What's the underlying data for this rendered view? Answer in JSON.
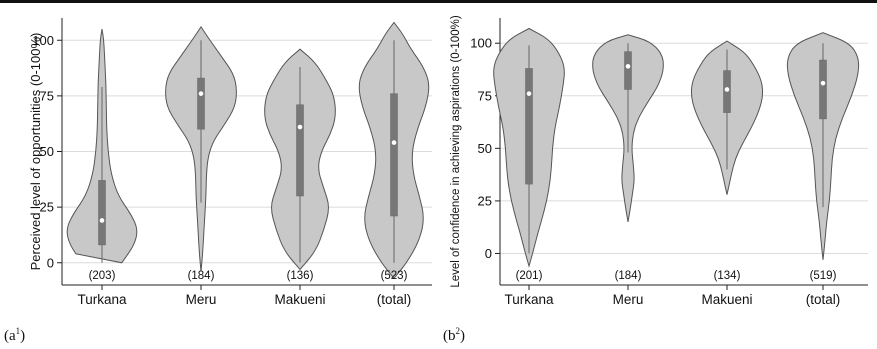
{
  "chart_data": [
    {
      "type": "violin",
      "panel_label": "(a",
      "panel_label_sup": "1",
      "ylabel": "Perceived level of opportunities (0-100%)",
      "ylim": [
        -10,
        110
      ],
      "yticks": [
        0,
        25,
        50,
        75,
        100
      ],
      "grid": true,
      "categories": [
        "Turkana",
        "Meru",
        "Makueni",
        "(total)"
      ],
      "counts": [
        "(203)",
        "(184)",
        "(136)",
        "(523)"
      ],
      "series": [
        {
          "category": "Turkana",
          "median": 19,
          "q1": 8,
          "q3": 37,
          "whisker_low": 0,
          "whisker_high": 79,
          "min": 0,
          "max": 105,
          "density": [
            [
              0,
              0.55
            ],
            [
              8,
              0.9
            ],
            [
              15,
              1.0
            ],
            [
              22,
              0.8
            ],
            [
              30,
              0.45
            ],
            [
              40,
              0.25
            ],
            [
              50,
              0.17
            ],
            [
              60,
              0.13
            ],
            [
              70,
              0.12
            ],
            [
              80,
              0.11
            ],
            [
              90,
              0.08
            ],
            [
              100,
              0.05
            ],
            [
              105,
              0
            ]
          ]
        },
        {
          "category": "Meru",
          "median": 76,
          "q1": 60,
          "q3": 83,
          "whisker_low": 27,
          "whisker_high": 100,
          "min": -4,
          "max": 106,
          "density": [
            [
              -4,
              0
            ],
            [
              5,
              0.05
            ],
            [
              20,
              0.1
            ],
            [
              30,
              0.14
            ],
            [
              40,
              0.15
            ],
            [
              48,
              0.2
            ],
            [
              55,
              0.35
            ],
            [
              62,
              0.65
            ],
            [
              70,
              0.95
            ],
            [
              78,
              1.0
            ],
            [
              85,
              0.9
            ],
            [
              92,
              0.6
            ],
            [
              100,
              0.25
            ],
            [
              106,
              0
            ]
          ]
        },
        {
          "category": "Makueni",
          "median": 61,
          "q1": 30,
          "q3": 71,
          "whisker_low": 0,
          "whisker_high": 88,
          "min": -3,
          "max": 96,
          "density": [
            [
              -3,
              0
            ],
            [
              5,
              0.35
            ],
            [
              15,
              0.55
            ],
            [
              25,
              0.68
            ],
            [
              33,
              0.55
            ],
            [
              42,
              0.4
            ],
            [
              50,
              0.48
            ],
            [
              58,
              0.7
            ],
            [
              66,
              0.82
            ],
            [
              75,
              0.78
            ],
            [
              82,
              0.6
            ],
            [
              90,
              0.35
            ],
            [
              96,
              0
            ]
          ]
        },
        {
          "category": "(total)",
          "median": 54,
          "q1": 21,
          "q3": 76,
          "whisker_low": 0,
          "whisker_high": 100,
          "min": -7,
          "max": 108,
          "density": [
            [
              -7,
              0
            ],
            [
              0,
              0.3
            ],
            [
              10,
              0.6
            ],
            [
              20,
              0.72
            ],
            [
              30,
              0.6
            ],
            [
              40,
              0.45
            ],
            [
              50,
              0.42
            ],
            [
              60,
              0.55
            ],
            [
              70,
              0.75
            ],
            [
              80,
              0.85
            ],
            [
              88,
              0.7
            ],
            [
              96,
              0.4
            ],
            [
              103,
              0.2
            ],
            [
              108,
              0
            ]
          ]
        }
      ]
    },
    {
      "type": "violin",
      "panel_label": "(b",
      "panel_label_sup": "2",
      "ylabel": "Level of confidence in achieving aspirations (0-100%)",
      "ylim": [
        -15,
        112
      ],
      "yticks": [
        0,
        25,
        50,
        75,
        100
      ],
      "grid": true,
      "categories": [
        "Turkana",
        "Meru",
        "Makueni",
        "(total)"
      ],
      "counts": [
        "(201)",
        "(184)",
        "(134)",
        "(519)"
      ],
      "series": [
        {
          "category": "Turkana",
          "median": 76,
          "q1": 33,
          "q3": 88,
          "whisker_low": 0,
          "whisker_high": 99,
          "min": -6,
          "max": 107,
          "density": [
            [
              -6,
              0
            ],
            [
              0,
              0.1
            ],
            [
              10,
              0.25
            ],
            [
              20,
              0.42
            ],
            [
              30,
              0.55
            ],
            [
              40,
              0.62
            ],
            [
              50,
              0.65
            ],
            [
              60,
              0.72
            ],
            [
              70,
              0.85
            ],
            [
              80,
              0.95
            ],
            [
              88,
              1.0
            ],
            [
              95,
              0.85
            ],
            [
              102,
              0.55
            ],
            [
              107,
              0
            ]
          ]
        },
        {
          "category": "Meru",
          "median": 89,
          "q1": 78,
          "q3": 96,
          "whisker_low": 48,
          "whisker_high": 100,
          "min": 15,
          "max": 104,
          "density": [
            [
              15,
              0
            ],
            [
              20,
              0.05
            ],
            [
              28,
              0.12
            ],
            [
              35,
              0.18
            ],
            [
              42,
              0.15
            ],
            [
              50,
              0.1
            ],
            [
              58,
              0.15
            ],
            [
              65,
              0.3
            ],
            [
              72,
              0.55
            ],
            [
              80,
              0.85
            ],
            [
              88,
              1.0
            ],
            [
              95,
              0.95
            ],
            [
              101,
              0.6
            ],
            [
              104,
              0
            ]
          ]
        },
        {
          "category": "Makueni",
          "median": 78,
          "q1": 67,
          "q3": 87,
          "whisker_low": 40,
          "whisker_high": 97,
          "min": 28,
          "max": 101,
          "density": [
            [
              28,
              0
            ],
            [
              32,
              0.05
            ],
            [
              38,
              0.12
            ],
            [
              45,
              0.22
            ],
            [
              52,
              0.4
            ],
            [
              60,
              0.65
            ],
            [
              68,
              0.85
            ],
            [
              75,
              0.95
            ],
            [
              82,
              0.92
            ],
            [
              90,
              0.7
            ],
            [
              96,
              0.45
            ],
            [
              101,
              0
            ]
          ]
        },
        {
          "category": "(total)",
          "median": 81,
          "q1": 64,
          "q3": 92,
          "whisker_low": 22,
          "whisker_high": 100,
          "min": -3,
          "max": 105,
          "density": [
            [
              -3,
              0
            ],
            [
              5,
              0.05
            ],
            [
              15,
              0.1
            ],
            [
              25,
              0.18
            ],
            [
              35,
              0.22
            ],
            [
              45,
              0.25
            ],
            [
              55,
              0.35
            ],
            [
              65,
              0.55
            ],
            [
              75,
              0.8
            ],
            [
              85,
              0.98
            ],
            [
              93,
              1.0
            ],
            [
              100,
              0.75
            ],
            [
              105,
              0
            ]
          ]
        }
      ]
    }
  ]
}
